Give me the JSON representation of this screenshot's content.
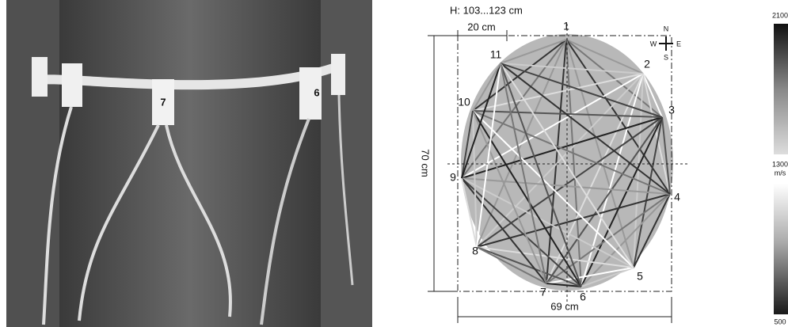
{
  "photo": {
    "sensor_labels": [
      "7",
      "6"
    ]
  },
  "diagram": {
    "height_label": "H: 103...123 cm",
    "width_top": "20 cm",
    "height_dim": "70 cm",
    "width_bottom": "69 cm",
    "compass": {
      "n": "N",
      "w": "W",
      "e": "E",
      "s": "S"
    },
    "sensors": [
      "1",
      "2",
      "3",
      "4",
      "5",
      "6",
      "7",
      "8",
      "9",
      "10",
      "11"
    ]
  },
  "scale": {
    "max": "2100",
    "mid": "1300",
    "unit": "m/s",
    "min": "500"
  }
}
